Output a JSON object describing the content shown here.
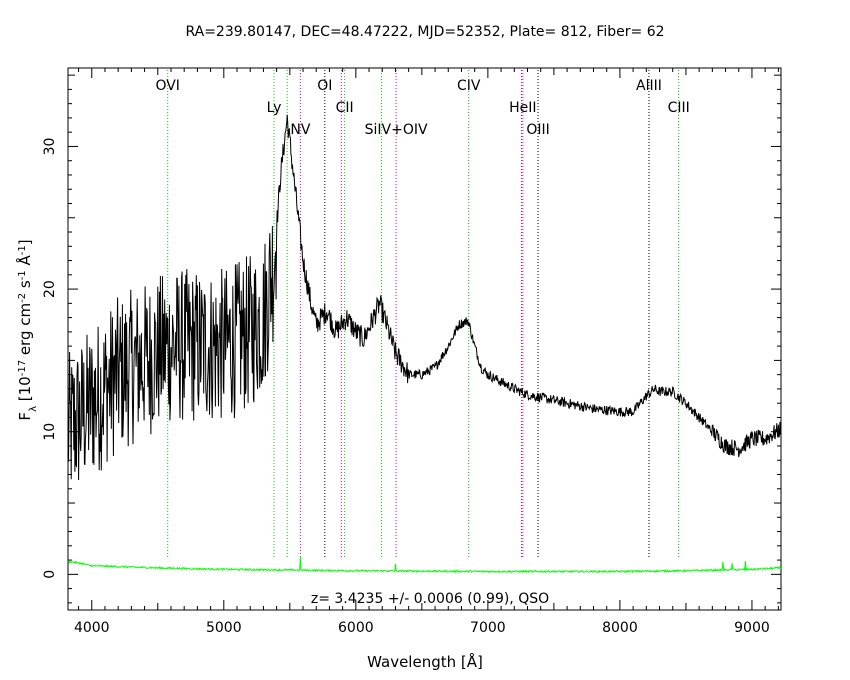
{
  "chart_data": {
    "type": "line",
    "title": "RA=239.80147, DEC=48.47222, MJD=52352, Plate=  812, Fiber=  62",
    "xlabel": "Wavelength [Å]",
    "ylabel_parts": [
      "F",
      "λ",
      " [10",
      "-17",
      " erg cm",
      "-2",
      " s",
      "-1",
      " Å",
      "-1",
      "]"
    ],
    "xlim": [
      3820,
      9220
    ],
    "ylim": [
      -2.5,
      35.5
    ],
    "x_ticks": [
      4000,
      5000,
      6000,
      7000,
      8000,
      9000
    ],
    "y_ticks": [
      0,
      10,
      20,
      30
    ],
    "annotation": "z=  3.4235 +/-  0.0006 (0.99), QSO",
    "colors": {
      "flux": "#000000",
      "error": "#00ff00",
      "green_line": "#00cc00",
      "magenta_line": "#cc00cc",
      "black_line": "#000000"
    },
    "lines": [
      {
        "label": "OVI",
        "x": 4575,
        "color": "green",
        "tier": 0
      },
      {
        "label": "Ly",
        "x": 5380,
        "color": "green",
        "tier": 1
      },
      {
        "label": "",
        "x": 5480,
        "color": "green",
        "tier": 1
      },
      {
        "label": "NV",
        "x": 5580,
        "color": "magenta",
        "tier": 2
      },
      {
        "label": "OI",
        "x": 5765,
        "color": "black",
        "tier": 0
      },
      {
        "label": "",
        "x": 5890,
        "color": "magenta",
        "tier": 1
      },
      {
        "label": "CII",
        "x": 5915,
        "color": "green",
        "tier": 1
      },
      {
        "label": "",
        "x": 6195,
        "color": "green",
        "tier": 2
      },
      {
        "label": "SiIV+OIV",
        "x": 6305,
        "color": "magenta",
        "tier": 2
      },
      {
        "label": "CIV",
        "x": 6855,
        "color": "green",
        "tier": 0
      },
      {
        "label": "",
        "x": 7255,
        "color": "magenta",
        "tier": 1
      },
      {
        "label": "HeII",
        "x": 7265,
        "color": "magenta",
        "tier": 1
      },
      {
        "label": "OIII",
        "x": 7380,
        "color": "black",
        "tier": 2
      },
      {
        "label": "AlIII",
        "x": 8220,
        "color": "black",
        "tier": 0
      },
      {
        "label": "CIII",
        "x": 8445,
        "color": "green",
        "tier": 1
      }
    ],
    "flux_anchors": [
      [
        3820,
        10
      ],
      [
        4000,
        12
      ],
      [
        4200,
        14
      ],
      [
        4400,
        15
      ],
      [
        4600,
        16
      ],
      [
        4800,
        16
      ],
      [
        5000,
        16
      ],
      [
        5200,
        17
      ],
      [
        5300,
        18
      ],
      [
        5380,
        22
      ],
      [
        5430,
        28
      ],
      [
        5480,
        32
      ],
      [
        5540,
        27
      ],
      [
        5600,
        22
      ],
      [
        5660,
        19
      ],
      [
        5700,
        17.5
      ],
      [
        5780,
        18.5
      ],
      [
        5850,
        17
      ],
      [
        5930,
        18
      ],
      [
        6000,
        17
      ],
      [
        6060,
        16.5
      ],
      [
        6110,
        17.5
      ],
      [
        6180,
        19.0
      ],
      [
        6250,
        17
      ],
      [
        6300,
        15.5
      ],
      [
        6400,
        14
      ],
      [
        6500,
        14
      ],
      [
        6600,
        14.5
      ],
      [
        6700,
        16
      ],
      [
        6780,
        17.5
      ],
      [
        6850,
        17.8
      ],
      [
        6900,
        16
      ],
      [
        6950,
        14.5
      ],
      [
        7000,
        14
      ],
      [
        7100,
        13.5
      ],
      [
        7200,
        13
      ],
      [
        7300,
        12.6
      ],
      [
        7400,
        12.4
      ],
      [
        7500,
        12.2
      ],
      [
        7600,
        12
      ],
      [
        7700,
        11.8
      ],
      [
        7800,
        11.6
      ],
      [
        7900,
        11.5
      ],
      [
        8000,
        11.4
      ],
      [
        8100,
        11.4
      ],
      [
        8200,
        12.5
      ],
      [
        8260,
        13
      ],
      [
        8300,
        12.8
      ],
      [
        8400,
        12.8
      ],
      [
        8500,
        12
      ],
      [
        8600,
        11
      ],
      [
        8700,
        10
      ],
      [
        8800,
        9
      ],
      [
        8900,
        8.8
      ],
      [
        9000,
        9.5
      ],
      [
        9100,
        9.5
      ],
      [
        9220,
        10.2
      ]
    ],
    "error_anchors": [
      [
        3820,
        0.9
      ],
      [
        3900,
        0.8
      ],
      [
        4000,
        0.6
      ],
      [
        4500,
        0.45
      ],
      [
        5000,
        0.35
      ],
      [
        5500,
        0.3
      ],
      [
        6000,
        0.25
      ],
      [
        7000,
        0.2
      ],
      [
        8000,
        0.2
      ],
      [
        8500,
        0.25
      ],
      [
        9000,
        0.35
      ],
      [
        9220,
        0.45
      ]
    ],
    "error_spikes": [
      [
        5580,
        1.0
      ],
      [
        6300,
        0.5
      ],
      [
        8780,
        0.6
      ],
      [
        8850,
        0.5
      ],
      [
        8950,
        0.55
      ]
    ]
  }
}
